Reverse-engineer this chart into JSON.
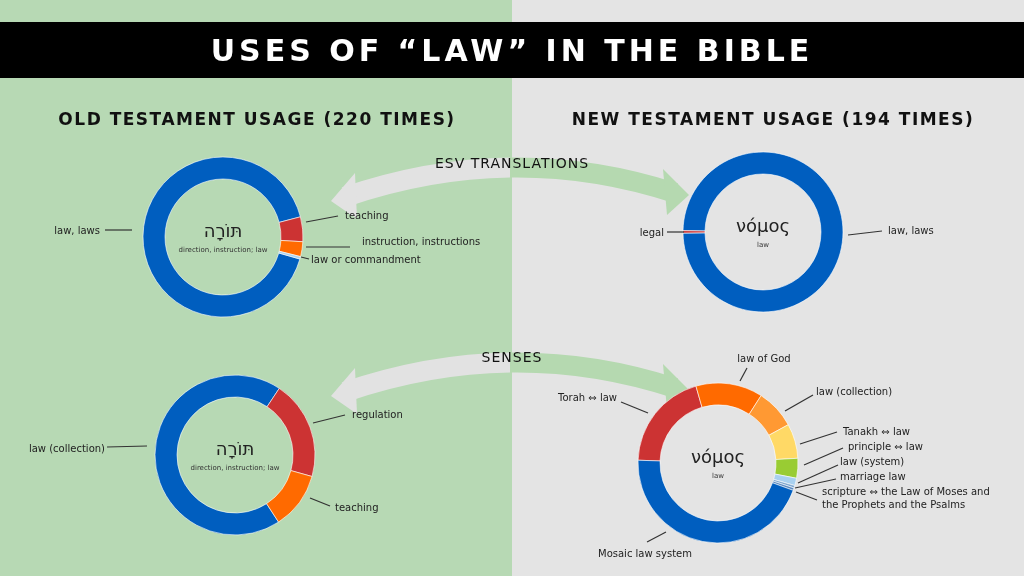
{
  "chart_data": [
    {
      "type": "donut",
      "title": "USES OF “LAW” IN THE BIBLE",
      "subtitle": "OLD TESTAMENT USAGE (220 TIMES)",
      "categories": [
        "law, laws",
        "teaching",
        "instruction, instructions",
        "law or commandment"
      ],
      "values": [
        91.5,
        5,
        3,
        0.5
      ],
      "colors": [
        "#005ebf",
        "#cc3333",
        "#ff6a00",
        "#a8d0ef"
      ],
      "annotations": [
        "תּוֹרָה",
        "direction, instruction; law",
        "ESV TRANSLATIONS"
      ]
    },
    {
      "type": "donut",
      "subtitle": "NEW TESTAMENT USAGE (194 TIMES)",
      "categories": [
        "law, laws",
        "legal"
      ],
      "values": [
        99.5,
        0.5
      ],
      "colors": [
        "#005ebf",
        "#cc3333"
      ],
      "annotations": [
        "νόμος",
        "law"
      ]
    },
    {
      "type": "donut",
      "categories": [
        "law (collection)",
        "regulation",
        "teaching"
      ],
      "values": [
        68.5,
        20,
        11.5
      ],
      "colors": [
        "#005ebf",
        "#cc3333",
        "#ff6a00"
      ],
      "annotations": [
        "תּוֹרָה",
        "direction, instruction; law",
        "SENSES"
      ]
    },
    {
      "type": "donut",
      "categories": [
        "Torah ⇔ law",
        "law of God",
        "law (collection)",
        "Tanakh ⇔ law",
        "principle ⇔ law",
        "law (system)",
        "marriage law",
        "scripture ⇔ the Law of Moses and the Prophets and the Psalms",
        "Mosaic law system"
      ],
      "values": [
        20,
        13.5,
        8,
        7,
        4,
        1.5,
        0.5,
        0.5,
        45
      ],
      "colors": [
        "#cc3333",
        "#ff6a00",
        "#ff9933",
        "#ffd966",
        "#99cc33",
        "#a8d0ef",
        "#7fa8d0",
        "#5b8ac0",
        "#005ebf"
      ],
      "annotations": [
        "νόμος",
        "law"
      ]
    }
  ]
}
